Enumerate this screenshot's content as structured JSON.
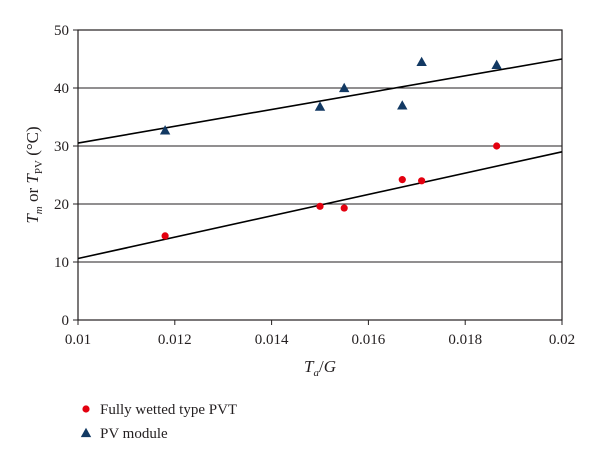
{
  "chart_data": {
    "type": "scatter",
    "title": "",
    "xlabel": "Ta/G",
    "ylabel": "Tm or TPV (°C)",
    "xlim": [
      0.01,
      0.02
    ],
    "ylim": [
      0,
      50
    ],
    "x_ticks": [
      "0.01",
      "0.012",
      "0.014",
      "0.016",
      "0.018",
      "0.02"
    ],
    "y_ticks": [
      "0",
      "10",
      "20",
      "30",
      "40",
      "50"
    ],
    "grid": "horizontal",
    "legend_position": "bottom-left",
    "series": [
      {
        "name": "Fully wetted type PVT",
        "marker": "circle",
        "color": "#e3000f",
        "x": [
          0.0118,
          0.015,
          0.0155,
          0.0167,
          0.0171,
          0.01865
        ],
        "y": [
          14.5,
          19.6,
          19.3,
          24.2,
          24.0,
          30.0
        ],
        "trendline": {
          "x": [
            0.01,
            0.02
          ],
          "y": [
            10.6,
            29.0
          ]
        }
      },
      {
        "name": "PV module",
        "marker": "triangle",
        "color": "#123963",
        "x": [
          0.0118,
          0.015,
          0.0155,
          0.0167,
          0.0171,
          0.01865
        ],
        "y": [
          32.7,
          36.8,
          40.0,
          37.0,
          44.5,
          44.0
        ],
        "trendline": {
          "x": [
            0.01,
            0.02
          ],
          "y": [
            30.5,
            45.0
          ]
        }
      }
    ]
  }
}
